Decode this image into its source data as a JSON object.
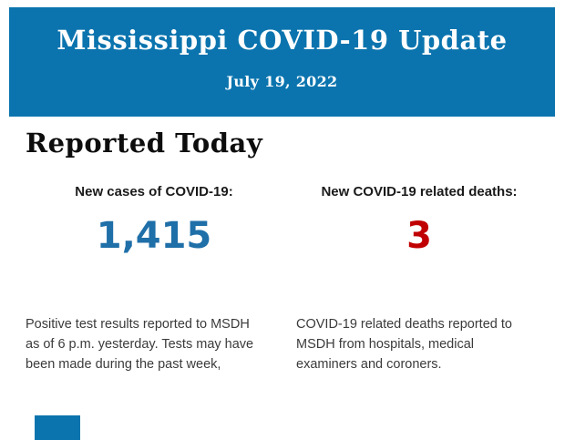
{
  "header": {
    "title": "Mississippi COVID-19 Update",
    "date": "July 19, 2022"
  },
  "section": {
    "heading": "Reported Today"
  },
  "stats": {
    "cases": {
      "label": "New cases of COVID-19:",
      "value": "1,415",
      "description": "Positive test results reported to MSDH as of 6 p.m. yesterday. Tests may have been made during the past week,"
    },
    "deaths": {
      "label": "New COVID-19 related deaths:",
      "value": "3",
      "description": "COVID-19 related deaths reported to MSDH from hospitals, medical examiners and coroners."
    }
  },
  "colors": {
    "banner_blue": "#0b74ae",
    "cases_value_blue": "#1f6fa8",
    "deaths_value_red": "#c00000"
  }
}
